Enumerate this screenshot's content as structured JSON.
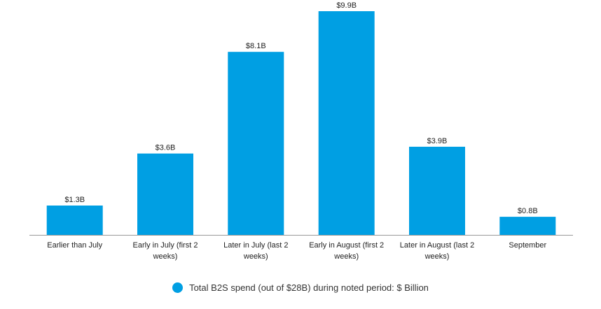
{
  "chart_data": {
    "type": "bar",
    "categories": [
      "Earlier than July",
      "Early in July (first 2 weeks)",
      "Later in July (last 2 weeks)",
      "Early in August (first 2 weeks)",
      "Later in August (last 2 weeks)",
      "September"
    ],
    "category_lines": [
      [
        "Earlier than July"
      ],
      [
        "Early in July (first 2",
        "weeks)"
      ],
      [
        "Later in July (last 2",
        "weeks)"
      ],
      [
        "Early in August (first 2",
        "weeks)"
      ],
      [
        "Later in August (last 2",
        "weeks)"
      ],
      [
        "September"
      ]
    ],
    "series": [
      {
        "name": "Total B2S spend (out of $28B) during noted period: $ Billion",
        "values": [
          1.3,
          3.6,
          8.1,
          9.9,
          3.9,
          0.8
        ],
        "labels": [
          "$1.3B",
          "$3.6B",
          "$8.1B",
          "$9.9B",
          "$3.9B",
          "$0.8B"
        ],
        "color": "#009fe3"
      }
    ],
    "ylim": [
      0,
      9.9
    ],
    "grid": false,
    "legend_position": "bottom-center"
  }
}
